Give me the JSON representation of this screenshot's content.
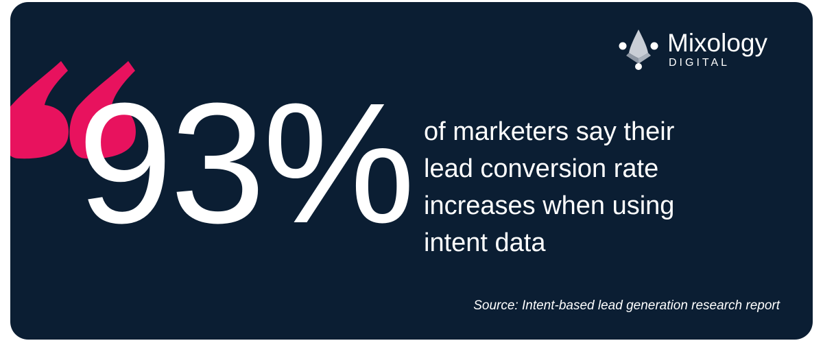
{
  "colors": {
    "background": "#0b1e33",
    "accent": "#e8125e",
    "text": "#ffffff",
    "logo_mark": "#c9ced6"
  },
  "logo": {
    "icon": "mixology-logo-icon",
    "name": "Mixology",
    "sub": "DIGITAL"
  },
  "quote_icon": "quote-mark-icon",
  "stat": {
    "value": "93%",
    "lines": [
      "of marketers say their",
      "lead conversion rate",
      "increases when using",
      "intent data"
    ]
  },
  "source": "Source: Intent-based lead generation research report"
}
